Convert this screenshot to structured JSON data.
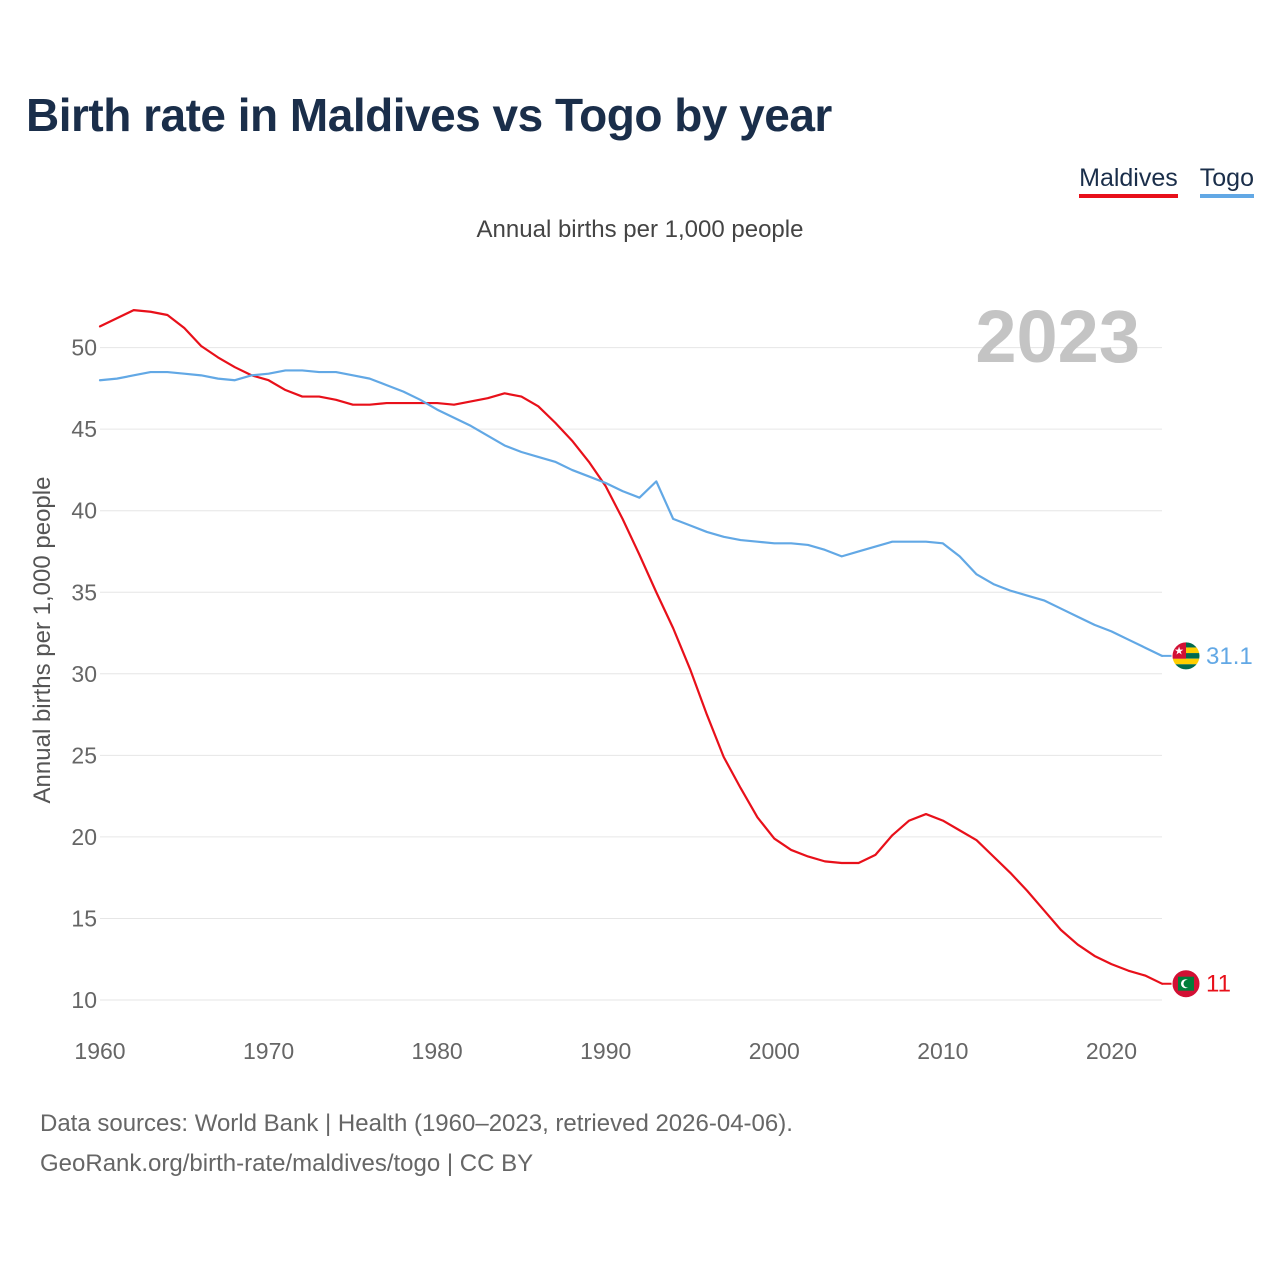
{
  "title": "Birth rate in Maldives vs Togo by year",
  "subtitle": "Annual births per 1,000 people",
  "legend": {
    "maldives": "Maldives",
    "togo": "Togo"
  },
  "year_label": "2023",
  "footer": {
    "line1": "Data sources: World Bank | Health (1960–2023, retrieved 2026-04-06).",
    "line2": "GeoRank.org/birth-rate/maldives/togo | CC BY"
  },
  "colors": {
    "maldives": "#e8101a",
    "togo": "#62a8e5",
    "title": "#1a2e4a"
  },
  "chart_data": {
    "type": "line",
    "title": "Birth rate in Maldives vs Togo by year",
    "ylabel": "Annual births per 1,000 people",
    "xlabel": "",
    "xlim": [
      1960,
      2023
    ],
    "ylim": [
      10,
      52
    ],
    "x_ticks": [
      1960,
      1970,
      1980,
      1990,
      2000,
      2010,
      2020
    ],
    "y_ticks": [
      10,
      15,
      20,
      25,
      30,
      35,
      40,
      45,
      50
    ],
    "grid": true,
    "x": [
      1960,
      1961,
      1962,
      1963,
      1964,
      1965,
      1966,
      1967,
      1968,
      1969,
      1970,
      1971,
      1972,
      1973,
      1974,
      1975,
      1976,
      1977,
      1978,
      1979,
      1980,
      1981,
      1982,
      1983,
      1984,
      1985,
      1986,
      1987,
      1988,
      1989,
      1990,
      1991,
      1992,
      1993,
      1994,
      1995,
      1996,
      1997,
      1998,
      1999,
      2000,
      2001,
      2002,
      2003,
      2004,
      2005,
      2006,
      2007,
      2008,
      2009,
      2010,
      2011,
      2012,
      2013,
      2014,
      2015,
      2016,
      2017,
      2018,
      2019,
      2020,
      2021,
      2022,
      2023
    ],
    "series": [
      {
        "name": "Maldives",
        "end_label": "11",
        "values": [
          51.3,
          51.8,
          52.3,
          52.2,
          52.0,
          51.2,
          50.1,
          49.4,
          48.8,
          48.3,
          48.0,
          47.4,
          47.0,
          47.0,
          46.8,
          46.5,
          46.5,
          46.6,
          46.6,
          46.6,
          46.6,
          46.5,
          46.7,
          46.9,
          47.2,
          47.0,
          46.4,
          45.4,
          44.3,
          43.0,
          41.5,
          39.5,
          37.3,
          35.0,
          32.8,
          30.3,
          27.5,
          24.9,
          23.0,
          21.2,
          19.9,
          19.2,
          18.8,
          18.5,
          18.4,
          18.4,
          18.9,
          20.1,
          21.0,
          21.4,
          21.0,
          20.4,
          19.8,
          18.8,
          17.8,
          16.7,
          15.5,
          14.3,
          13.4,
          12.7,
          12.2,
          11.8,
          11.5,
          11.0
        ]
      },
      {
        "name": "Togo",
        "end_label": "31.1",
        "values": [
          48.0,
          48.1,
          48.3,
          48.5,
          48.5,
          48.4,
          48.3,
          48.1,
          48.0,
          48.3,
          48.4,
          48.6,
          48.6,
          48.5,
          48.5,
          48.3,
          48.1,
          47.7,
          47.3,
          46.8,
          46.2,
          45.7,
          45.2,
          44.6,
          44.0,
          43.6,
          43.3,
          43.0,
          42.5,
          42.1,
          41.7,
          41.2,
          40.8,
          41.8,
          39.5,
          39.1,
          38.7,
          38.4,
          38.2,
          38.1,
          38.0,
          38.0,
          37.9,
          37.6,
          37.2,
          37.5,
          37.8,
          38.1,
          38.1,
          38.1,
          38.0,
          37.2,
          36.1,
          35.5,
          35.1,
          34.8,
          34.5,
          34.0,
          33.5,
          33.0,
          32.6,
          32.1,
          31.6,
          31.1
        ]
      }
    ]
  }
}
